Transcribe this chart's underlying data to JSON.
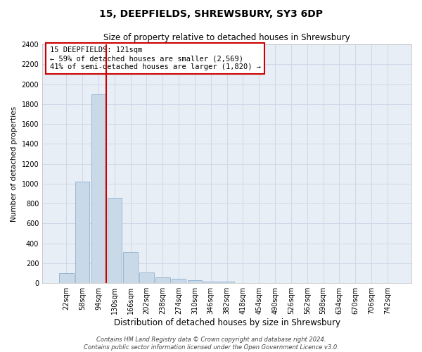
{
  "title": "15, DEEPFIELDS, SHREWSBURY, SY3 6DP",
  "subtitle": "Size of property relative to detached houses in Shrewsbury",
  "xlabel": "Distribution of detached houses by size in Shrewsbury",
  "ylabel": "Number of detached properties",
  "categories": [
    "22sqm",
    "58sqm",
    "94sqm",
    "130sqm",
    "166sqm",
    "202sqm",
    "238sqm",
    "274sqm",
    "310sqm",
    "346sqm",
    "382sqm",
    "418sqm",
    "454sqm",
    "490sqm",
    "526sqm",
    "562sqm",
    "598sqm",
    "634sqm",
    "670sqm",
    "706sqm",
    "742sqm"
  ],
  "values": [
    100,
    1020,
    1900,
    860,
    310,
    110,
    55,
    45,
    30,
    15,
    15,
    5,
    2,
    1,
    1,
    0,
    0,
    0,
    0,
    0,
    0
  ],
  "bar_color": "#c9d9e8",
  "bar_edge_color": "#7fa8c9",
  "vline_color": "#cc0000",
  "vline_x_index": 2.5,
  "annotation_text": "15 DEEPFIELDS: 121sqm\n← 59% of detached houses are smaller (2,569)\n41% of semi-detached houses are larger (1,820) →",
  "annotation_box_color": "#ffffff",
  "annotation_box_edge_color": "#cc0000",
  "ylim": [
    0,
    2400
  ],
  "yticks": [
    0,
    200,
    400,
    600,
    800,
    1000,
    1200,
    1400,
    1600,
    1800,
    2000,
    2200,
    2400
  ],
  "grid_color": "#d0d8e8",
  "bg_color": "#e8eef5",
  "footer": "Contains HM Land Registry data © Crown copyright and database right 2024.\nContains public sector information licensed under the Open Government Licence v3.0.",
  "title_fontsize": 10,
  "subtitle_fontsize": 8.5,
  "xlabel_fontsize": 8.5,
  "ylabel_fontsize": 7.5,
  "tick_fontsize": 7,
  "annotation_fontsize": 7.5,
  "footer_fontsize": 6
}
